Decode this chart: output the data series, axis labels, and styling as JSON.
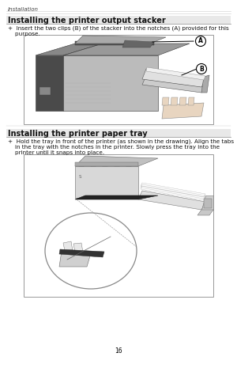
{
  "page_bg": "#ffffff",
  "header_text": "Installation",
  "section1_title": "Installing the printer output stacker",
  "section1_bullet_line1": "+  Insert the two clips (B) of the stacker into the notches (A) provided for this",
  "section1_bullet_line2": "    purpose.",
  "section2_title": "Installing the printer paper tray",
  "section2_bullet_line1": "+  Hold the tray in front of the printer (as shown in the drawing). Align the tabs",
  "section2_bullet_line2": "    in the tray with the notches in the printer. Slowly press the tray into the",
  "section2_bullet_line3": "    printer until it snaps into place.",
  "page_number": "16",
  "label_A": "A",
  "label_B": "B",
  "title_fontsize": 7.0,
  "body_fontsize": 5.2,
  "header_fontsize": 5.0,
  "page_num_fontsize": 5.5,
  "border_color": "#aaaaaa",
  "text_color": "#111111",
  "header_color": "#444444",
  "line_color": "#aaaaaa",
  "title_bar_color": "#e8e8e8"
}
